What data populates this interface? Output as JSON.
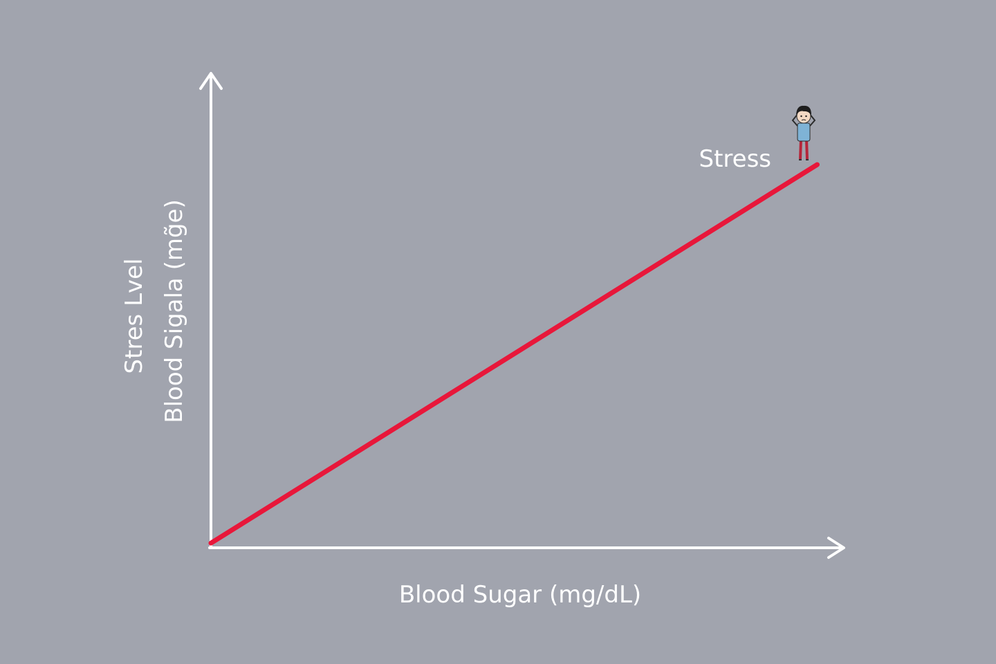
{
  "chart_data": {
    "type": "line",
    "title": "",
    "xlabel": "Blood Sugar (mg/dL)",
    "ylabel_lines": [
      "Stres Lvel",
      "Blood Sigala (mg̃e)"
    ],
    "grid": false,
    "legend": "none",
    "xlim": [
      0,
      100
    ],
    "ylim": [
      0,
      100
    ],
    "series": [
      {
        "name": "Stress",
        "color": "#e8173a",
        "x": [
          0,
          96
        ],
        "y": [
          1,
          81
        ]
      }
    ],
    "annotations": [
      {
        "text": "Stress",
        "icon": "stressed-person-icon"
      }
    ]
  },
  "colors": {
    "background": "#a1a4ae",
    "axis": "#ffffff",
    "text": "#ffffff",
    "line": "#e8173a"
  }
}
